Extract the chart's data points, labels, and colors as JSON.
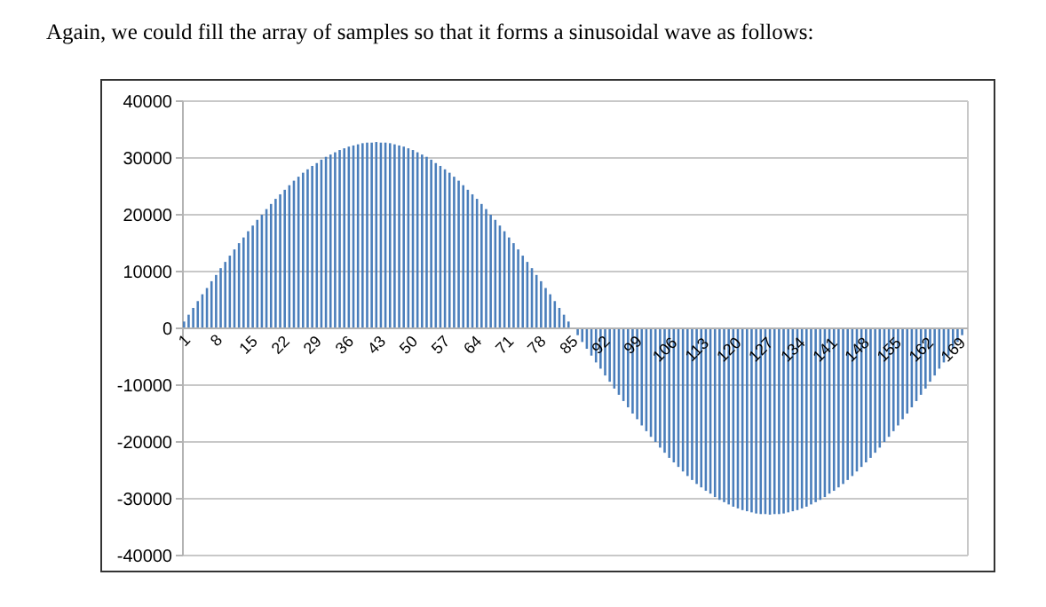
{
  "chart_data": {
    "type": "bar",
    "title": "Again, we could fill the array of samples so that it forms a sinusoidal wave as follows:",
    "legend": false,
    "categories": [
      "1",
      null,
      null,
      null,
      null,
      null,
      null,
      "8",
      null,
      null,
      null,
      null,
      null,
      null,
      "15",
      null,
      null,
      null,
      null,
      null,
      null,
      "22",
      null,
      null,
      null,
      null,
      null,
      null,
      "29",
      null,
      null,
      null,
      null,
      null,
      null,
      "36",
      null,
      null,
      null,
      null,
      null,
      null,
      "43",
      null,
      null,
      null,
      null,
      null,
      null,
      "50",
      null,
      null,
      null,
      null,
      null,
      null,
      "57",
      null,
      null,
      null,
      null,
      null,
      null,
      "64",
      null,
      null,
      null,
      null,
      null,
      null,
      "71",
      null,
      null,
      null,
      null,
      null,
      null,
      "78",
      null,
      null,
      null,
      null,
      null,
      null,
      "85",
      null,
      null,
      null,
      null,
      null,
      null,
      "92",
      null,
      null,
      null,
      null,
      null,
      null,
      "99",
      null,
      null,
      null,
      null,
      null,
      null,
      "106",
      null,
      null,
      null,
      null,
      null,
      null,
      "113",
      null,
      null,
      null,
      null,
      null,
      null,
      "120",
      null,
      null,
      null,
      null,
      null,
      null,
      "127",
      null,
      null,
      null,
      null,
      null,
      null,
      "134",
      null,
      null,
      null,
      null,
      null,
      null,
      "141",
      null,
      null,
      null,
      null,
      null,
      null,
      "148",
      null,
      null,
      null,
      null,
      null,
      null,
      "155",
      null,
      null,
      null,
      null,
      null,
      null,
      "162",
      null,
      null,
      null,
      null,
      null,
      null,
      "169",
      null,
      null,
      null
    ],
    "values": [
      1200,
      2400,
      3600,
      4800,
      6000,
      7100,
      8300,
      9400,
      10600,
      11700,
      12800,
      13900,
      15000,
      16000,
      17100,
      18100,
      19100,
      20000,
      21000,
      21900,
      22800,
      23600,
      24400,
      25200,
      26000,
      26700,
      27400,
      28000,
      28600,
      29100,
      29700,
      30200,
      30600,
      31000,
      31400,
      31700,
      32000,
      32200,
      32400,
      32600,
      32700,
      32700,
      32800,
      32700,
      32700,
      32600,
      32400,
      32200,
      32000,
      31700,
      31400,
      31000,
      30600,
      30200,
      29700,
      29100,
      28600,
      28000,
      27400,
      26700,
      26000,
      25200,
      24400,
      23600,
      22800,
      21900,
      21000,
      20000,
      19100,
      18100,
      17100,
      16000,
      15000,
      13900,
      12800,
      11700,
      10600,
      9400,
      8300,
      7100,
      6000,
      4800,
      3600,
      2400,
      1200,
      0,
      -1200,
      -2400,
      -3600,
      -4800,
      -6000,
      -7100,
      -8300,
      -9400,
      -10600,
      -11700,
      -12800,
      -13900,
      -15000,
      -16000,
      -17100,
      -18100,
      -19100,
      -20000,
      -21000,
      -21900,
      -22800,
      -23600,
      -24400,
      -25200,
      -26000,
      -26700,
      -27400,
      -28000,
      -28600,
      -29100,
      -29700,
      -30200,
      -30600,
      -31000,
      -31400,
      -31700,
      -32000,
      -32200,
      -32400,
      -32600,
      -32700,
      -32700,
      -32800,
      -32700,
      -32700,
      -32600,
      -32400,
      -32200,
      -32000,
      -31700,
      -31400,
      -31000,
      -30600,
      -30200,
      -29700,
      -29100,
      -28600,
      -28000,
      -27400,
      -26700,
      -26000,
      -25200,
      -24400,
      -23600,
      -22800,
      -21900,
      -21000,
      -20000,
      -19100,
      -18100,
      -17100,
      -16000,
      -15000,
      -13900,
      -12800,
      -11700,
      -10600,
      -9400,
      -8300,
      -7100,
      -6000,
      -4800,
      -3600,
      -2400,
      -1200,
      0
    ],
    "color": "#4a7ebb",
    "ylim": [
      -40000,
      40000
    ],
    "yticks": [
      -40000,
      -30000,
      -20000,
      -10000,
      0,
      10000,
      20000,
      30000,
      40000
    ],
    "grid": "y"
  }
}
